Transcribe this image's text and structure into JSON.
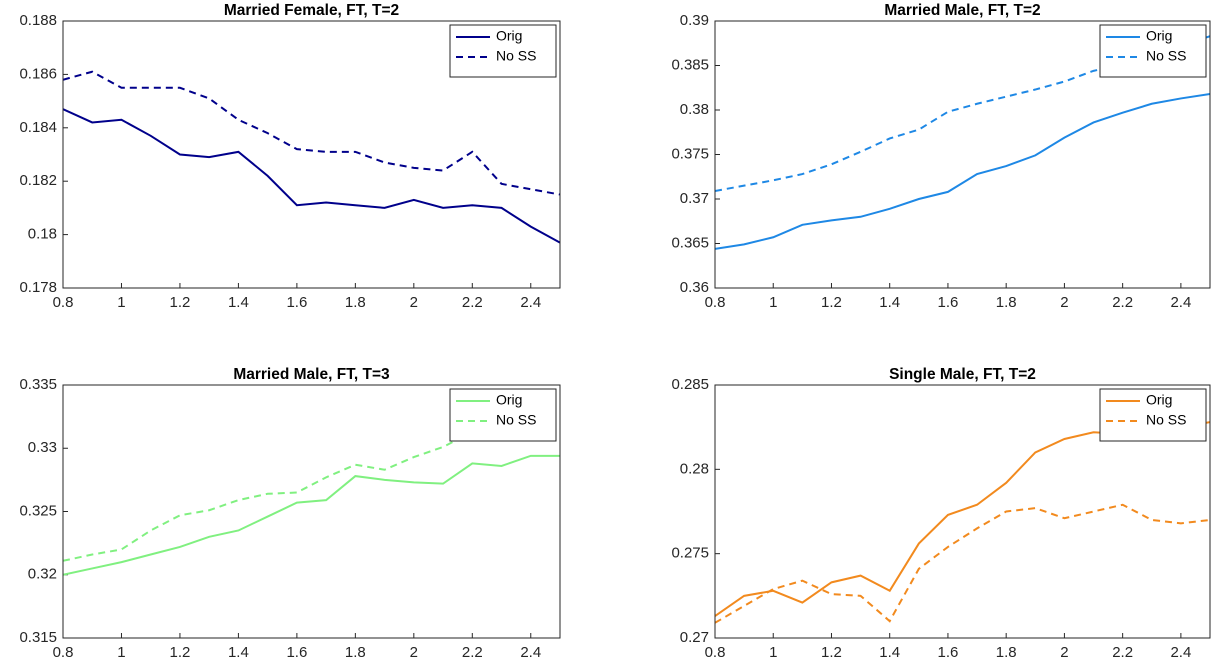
{
  "chart_data": [
    {
      "type": "line",
      "title": "Married Female, FT, T=2",
      "x": [
        0.8,
        0.9,
        1,
        1.1,
        1.2,
        1.3,
        1.4,
        1.5,
        1.6,
        1.7,
        1.8,
        1.9,
        2,
        2.1,
        2.2,
        2.3,
        2.4,
        2.5
      ],
      "series": [
        {
          "name": "Orig",
          "color": "#00008b",
          "linestyle": "solid",
          "values": [
            0.1847,
            0.1842,
            0.1843,
            0.1837,
            0.183,
            0.1829,
            0.1831,
            0.1822,
            0.1811,
            0.1812,
            0.1811,
            0.181,
            0.1813,
            0.181,
            0.1811,
            0.181,
            0.1803,
            0.1797
          ]
        },
        {
          "name": "No SS",
          "color": "#00008b",
          "linestyle": "dashed",
          "values": [
            0.1858,
            0.1861,
            0.1855,
            0.1855,
            0.1855,
            0.1851,
            0.1843,
            0.1838,
            0.1832,
            0.1831,
            0.1831,
            0.1827,
            0.1825,
            0.1824,
            0.1831,
            0.1819,
            0.1817,
            0.1815
          ]
        }
      ],
      "xlim": [
        0.8,
        2.5
      ],
      "xticks": [
        0.8,
        1,
        1.2,
        1.4,
        1.6,
        1.8,
        2,
        2.2,
        2.4
      ],
      "ylim": [
        0.178,
        0.188
      ],
      "yticks": [
        0.178,
        0.18,
        0.182,
        0.184,
        0.186,
        0.188
      ],
      "legend": "upper right"
    },
    {
      "type": "line",
      "title": "Married Male, FT, T=2",
      "x": [
        0.8,
        0.9,
        1,
        1.1,
        1.2,
        1.3,
        1.4,
        1.5,
        1.6,
        1.7,
        1.8,
        1.9,
        2,
        2.1,
        2.2,
        2.3,
        2.4,
        2.5
      ],
      "series": [
        {
          "name": "Orig",
          "color": "#1e88e5",
          "linestyle": "solid",
          "values": [
            0.3644,
            0.3649,
            0.3657,
            0.3671,
            0.3676,
            0.368,
            0.3689,
            0.37,
            0.3708,
            0.3728,
            0.3737,
            0.3749,
            0.3769,
            0.3786,
            0.3797,
            0.3807,
            0.3813,
            0.3818
          ]
        },
        {
          "name": "No SS",
          "color": "#1e88e5",
          "linestyle": "dashed",
          "values": [
            0.3709,
            0.3715,
            0.3721,
            0.3728,
            0.3739,
            0.3753,
            0.3768,
            0.3778,
            0.3798,
            0.3807,
            0.3815,
            0.3823,
            0.3832,
            0.3844,
            0.3851,
            0.3861,
            0.3871,
            0.3883
          ]
        }
      ],
      "xlim": [
        0.8,
        2.5
      ],
      "xticks": [
        0.8,
        1,
        1.2,
        1.4,
        1.6,
        1.8,
        2,
        2.2,
        2.4
      ],
      "ylim": [
        0.36,
        0.39
      ],
      "yticks": [
        0.36,
        0.365,
        0.37,
        0.375,
        0.38,
        0.385,
        0.39
      ],
      "legend": "upper right"
    },
    {
      "type": "line",
      "title": "Married Male, FT, T=3",
      "x": [
        0.8,
        0.9,
        1,
        1.1,
        1.2,
        1.3,
        1.4,
        1.5,
        1.6,
        1.7,
        1.8,
        1.9,
        2,
        2.1,
        2.2,
        2.3,
        2.4,
        2.5
      ],
      "series": [
        {
          "name": "Orig",
          "color": "#80f080",
          "linestyle": "solid",
          "values": [
            0.32,
            0.3205,
            0.321,
            0.3216,
            0.3222,
            0.323,
            0.3235,
            0.3246,
            0.3257,
            0.3259,
            0.3278,
            0.3275,
            0.3273,
            0.3272,
            0.3288,
            0.3286,
            0.3294,
            0.3294
          ]
        },
        {
          "name": "No SS",
          "color": "#80f080",
          "linestyle": "dashed",
          "values": [
            0.3211,
            0.3216,
            0.322,
            0.3235,
            0.3247,
            0.3251,
            0.3259,
            0.3264,
            0.3265,
            0.3277,
            0.3287,
            0.3283,
            0.3293,
            0.3301,
            0.3313,
            0.3316,
            0.3323,
            0.333
          ]
        }
      ],
      "xlim": [
        0.8,
        2.5
      ],
      "xticks": [
        0.8,
        1,
        1.2,
        1.4,
        1.6,
        1.8,
        2,
        2.2,
        2.4
      ],
      "ylim": [
        0.315,
        0.335
      ],
      "yticks": [
        0.315,
        0.32,
        0.325,
        0.33,
        0.335
      ],
      "legend": "upper right"
    },
    {
      "type": "line",
      "title": "Single Male, FT, T=2",
      "x": [
        0.8,
        0.9,
        1,
        1.1,
        1.2,
        1.3,
        1.4,
        1.5,
        1.6,
        1.7,
        1.8,
        1.9,
        2,
        2.1,
        2.2,
        2.3,
        2.4,
        2.5
      ],
      "series": [
        {
          "name": "Orig",
          "color": "#f28a1e",
          "linestyle": "solid",
          "values": [
            0.2713,
            0.2725,
            0.2728,
            0.2721,
            0.2733,
            0.2737,
            0.2728,
            0.2756,
            0.2773,
            0.2779,
            0.2792,
            0.281,
            0.2818,
            0.2822,
            0.2821,
            0.2818,
            0.2825,
            0.2828
          ]
        },
        {
          "name": "No SS",
          "color": "#f28a1e",
          "linestyle": "dashed",
          "values": [
            0.2709,
            0.2719,
            0.2729,
            0.2734,
            0.2726,
            0.2725,
            0.271,
            0.2741,
            0.2754,
            0.2765,
            0.2775,
            0.2777,
            0.2771,
            0.2775,
            0.2779,
            0.277,
            0.2768,
            0.277
          ]
        }
      ],
      "xlim": [
        0.8,
        2.5
      ],
      "xticks": [
        0.8,
        1,
        1.2,
        1.4,
        1.6,
        1.8,
        2,
        2.2,
        2.4
      ],
      "ylim": [
        0.27,
        0.285
      ],
      "yticks": [
        0.27,
        0.275,
        0.28,
        0.285
      ],
      "legend": "upper right"
    }
  ]
}
